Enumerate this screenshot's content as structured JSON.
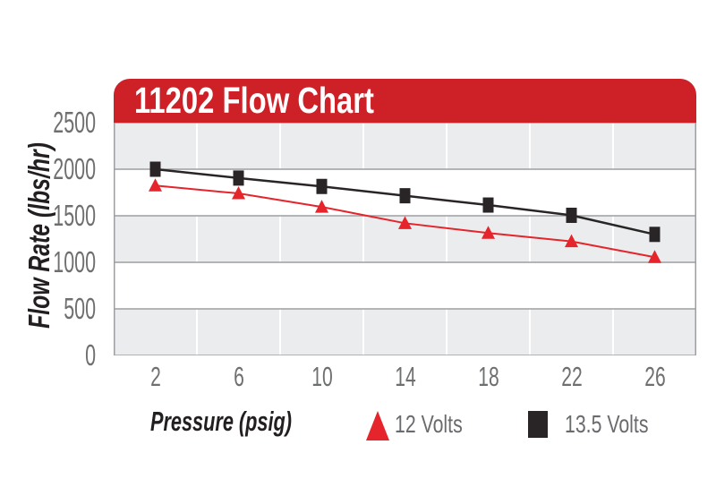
{
  "header": {
    "title_note": "title text lives in chart_data.title"
  },
  "colors": {
    "header_red": "#cd2027",
    "series_red": "#e5242b",
    "series_black": "#292526",
    "band_gray": "#ebecee",
    "grid_gray": "#9c9ea1",
    "vertical_grid_white": "#ffffff",
    "tick_text": "#6e6f71",
    "axis_title_text": "#231f20",
    "legend_text": "#6a6b6e",
    "title_text": "#ffffff"
  },
  "chart_data": {
    "type": "line",
    "title": "11202 Flow Chart",
    "xlabel": "Pressure (psig)",
    "ylabel": "Flow Rate (lbs/hr)",
    "categories": [
      "2",
      "6",
      "10",
      "14",
      "18",
      "22",
      "26"
    ],
    "yticks": [
      0,
      500,
      1000,
      1500,
      2000,
      2500
    ],
    "ylim": [
      0,
      2500
    ],
    "grid": "horizontal gray gridlines at each ytick; alternating gray/white horizontal bands (gray at top); white vertical lines at category boundaries",
    "legend_position": "bottom",
    "series": [
      {
        "name": "12 Volts",
        "marker": "triangle",
        "color": "#e5242b",
        "values": [
          1825,
          1740,
          1595,
          1420,
          1315,
          1225,
          1055
        ]
      },
      {
        "name": "13.5 Volts",
        "marker": "square",
        "color": "#292526",
        "values": [
          2000,
          1905,
          1815,
          1715,
          1615,
          1505,
          1300
        ]
      }
    ]
  }
}
